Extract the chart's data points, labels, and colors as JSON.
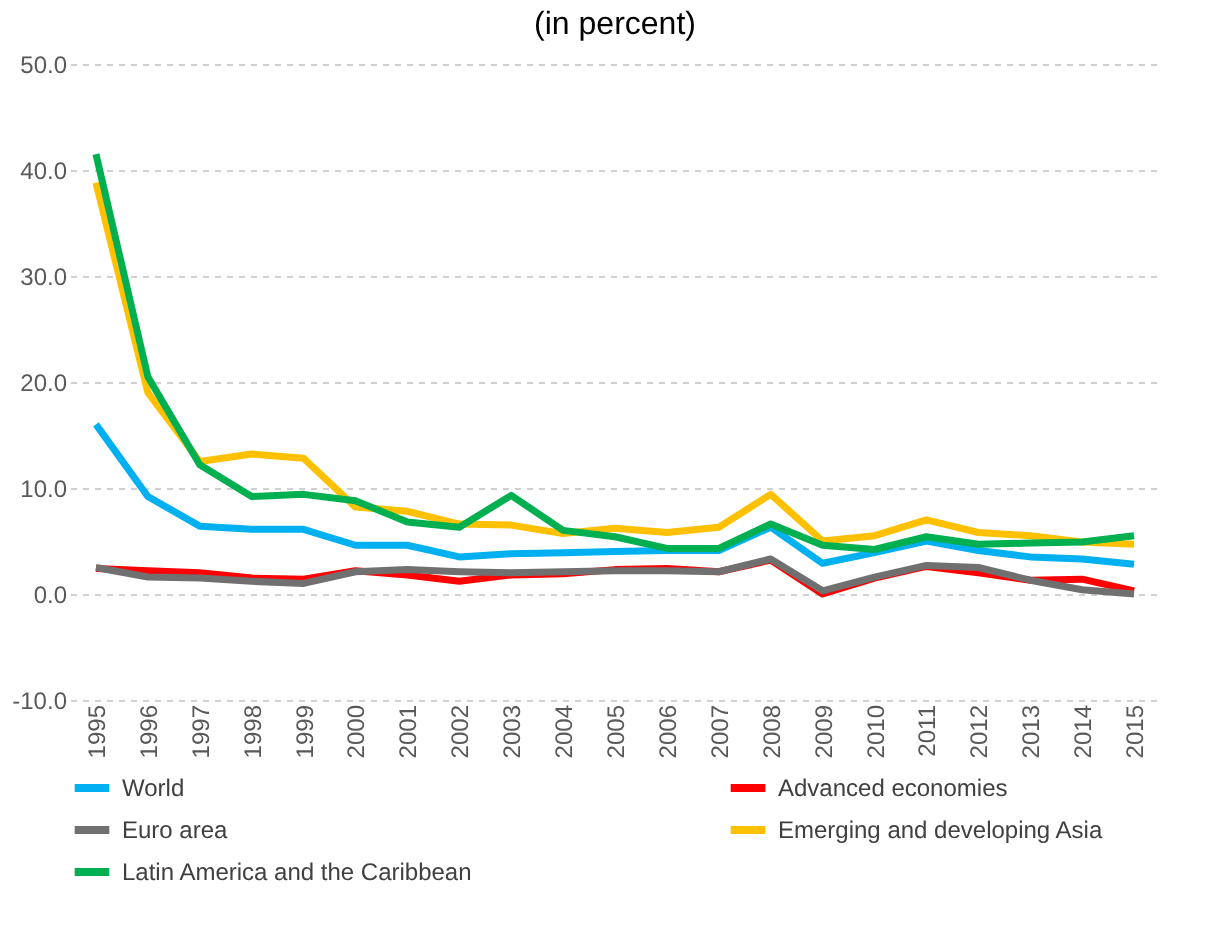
{
  "chart_data": {
    "type": "line",
    "title": "(in percent)",
    "categories": [
      "1995",
      "1996",
      "1997",
      "1998",
      "1999",
      "2000",
      "2001",
      "2002",
      "2003",
      "2004",
      "2005",
      "2006",
      "2007",
      "2008",
      "2009",
      "2010",
      "2011",
      "2012",
      "2013",
      "2014",
      "2015"
    ],
    "series": [
      {
        "name": "World",
        "color": "#00b0f0",
        "values": [
          16.0,
          9.2,
          6.4,
          6.1,
          6.1,
          4.6,
          4.6,
          3.5,
          3.8,
          3.9,
          4.0,
          4.1,
          4.1,
          6.3,
          2.9,
          3.9,
          5.0,
          4.1,
          3.5,
          3.3,
          2.8
        ]
      },
      {
        "name": "Advanced economies",
        "color": "#ff0000",
        "values": [
          2.4,
          2.2,
          2.0,
          1.5,
          1.4,
          2.2,
          1.8,
          1.2,
          1.8,
          1.9,
          2.3,
          2.4,
          2.1,
          3.2,
          0.0,
          1.5,
          2.6,
          2.0,
          1.3,
          1.4,
          0.3
        ]
      },
      {
        "name": "Euro area",
        "color": "#707070",
        "values": [
          2.5,
          1.6,
          1.5,
          1.2,
          1.0,
          2.1,
          2.3,
          2.1,
          2.0,
          2.1,
          2.2,
          2.2,
          2.1,
          3.3,
          0.3,
          1.6,
          2.7,
          2.5,
          1.3,
          0.4,
          0.0
        ]
      },
      {
        "name": "Emerging and developing Asia",
        "color": "#ffc000",
        "values": [
          38.8,
          19.0,
          12.5,
          13.2,
          12.8,
          8.2,
          7.8,
          6.6,
          6.5,
          5.7,
          6.2,
          5.8,
          6.3,
          9.4,
          5.0,
          5.5,
          7.0,
          5.8,
          5.5,
          4.9,
          4.7
        ]
      },
      {
        "name": "Latin America and the Caribbean",
        "color": "#00b050",
        "values": [
          41.5,
          20.5,
          12.2,
          9.2,
          9.4,
          8.8,
          6.8,
          6.3,
          9.3,
          6.0,
          5.4,
          4.3,
          4.3,
          6.6,
          4.6,
          4.2,
          5.4,
          4.7,
          4.8,
          4.9,
          5.5
        ]
      }
    ],
    "ylim": [
      -10,
      50
    ],
    "yticks": [
      {
        "value": -10,
        "label": "-10.0"
      },
      {
        "value": 0,
        "label": "0.0"
      },
      {
        "value": 10,
        "label": "10.0"
      },
      {
        "value": 20,
        "label": "20.0"
      },
      {
        "value": 30,
        "label": "30.0"
      },
      {
        "value": 40,
        "label": "40.0"
      },
      {
        "value": 50,
        "label": "50.0"
      }
    ],
    "grid": "y",
    "legend": "bottom",
    "line_style": "solid"
  }
}
